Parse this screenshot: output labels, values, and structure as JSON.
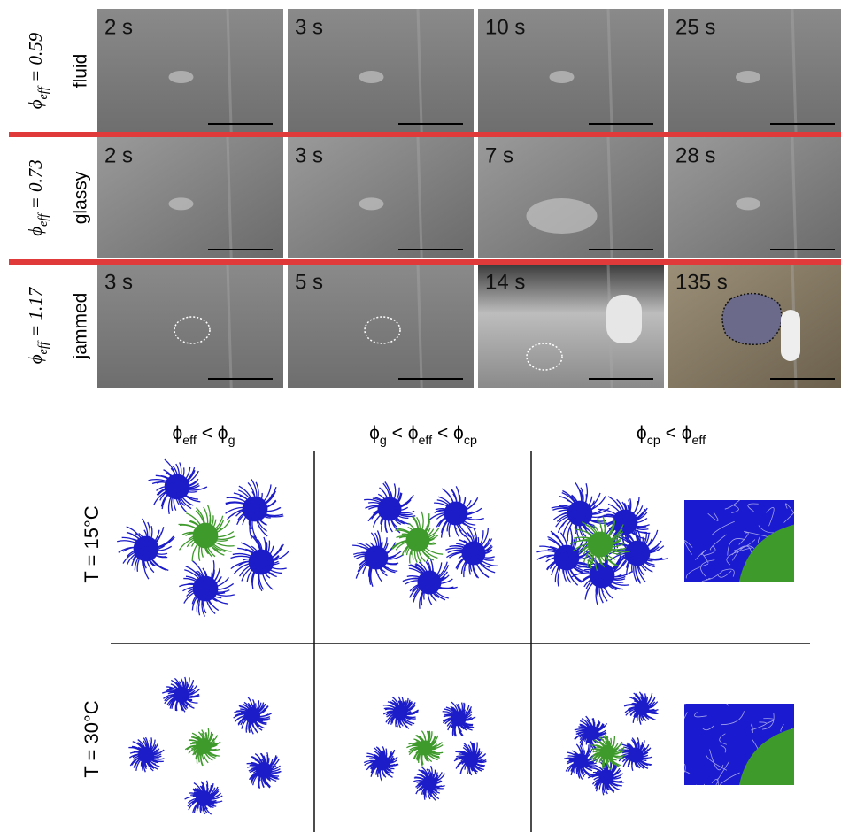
{
  "panels": {
    "rows": [
      {
        "phi": [
          {
            "text": "ϕ"
          },
          {
            "text": "eff",
            "sub": true
          },
          {
            "text": " = 0.59"
          }
        ],
        "state": "fluid",
        "times": [
          "2 s",
          "3 s",
          "10 s",
          "25 s"
        ]
      },
      {
        "phi": [
          {
            "text": "ϕ"
          },
          {
            "text": "eff",
            "sub": true
          },
          {
            "text": " = 0.73"
          }
        ],
        "state": "glassy",
        "times": [
          "2 s",
          "3 s",
          "7 s",
          "28 s"
        ]
      },
      {
        "phi": [
          {
            "text": "ϕ"
          },
          {
            "text": "eff",
            "sub": true
          },
          {
            "text": " = 1.17"
          }
        ],
        "state": "jammed",
        "times": [
          "3 s",
          "5 s",
          "14 s",
          "135 s"
        ]
      }
    ]
  },
  "schematic": {
    "columns": [
      [
        {
          "text": "ϕ"
        },
        {
          "text": "eff",
          "sub": true
        },
        {
          "text": " < ϕ"
        },
        {
          "text": "g",
          "sub": true
        }
      ],
      [
        {
          "text": "ϕ"
        },
        {
          "text": "g",
          "sub": true
        },
        {
          "text": " < ϕ"
        },
        {
          "text": "eff",
          "sub": true
        },
        {
          "text": " < ϕ"
        },
        {
          "text": "cp",
          "sub": true
        }
      ],
      [
        {
          "text": "ϕ"
        },
        {
          "text": "cp",
          "sub": true
        },
        {
          "text": " < ϕ"
        },
        {
          "text": "eff",
          "sub": true
        }
      ]
    ],
    "rows": [
      "T = 15°C",
      "T = 30°C"
    ]
  }
}
